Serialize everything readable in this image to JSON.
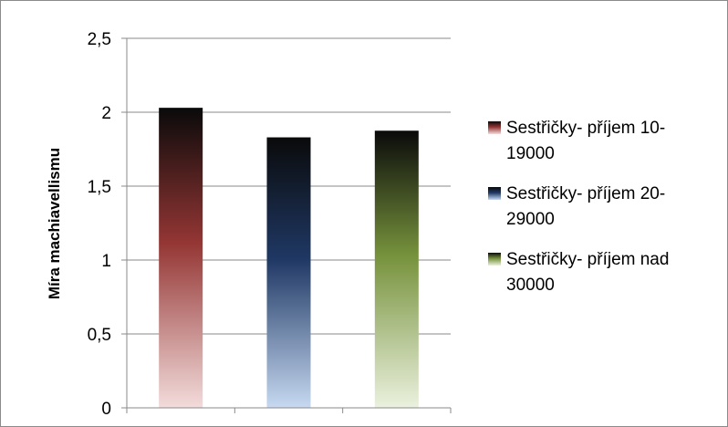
{
  "chart_data": {
    "type": "bar",
    "title": "",
    "xlabel": "",
    "ylabel": "Míra machiavellismu",
    "ylim": [
      0,
      2.5
    ],
    "yticks": [
      "0",
      "0,5",
      "1",
      "1,5",
      "2",
      "2,5"
    ],
    "ytick_values": [
      0,
      0.5,
      1,
      1.5,
      2,
      2.5
    ],
    "grid": true,
    "legend_position": "right",
    "series": [
      {
        "name_lines": [
          "Sestřičky- příjem 10-",
          "19000"
        ],
        "value": 2.03,
        "color_top": "#0a0a0a",
        "color_mid": "#943634",
        "color_bottom": "#f2dcdb"
      },
      {
        "name_lines": [
          "Sestřičky- příjem 20-",
          "29000"
        ],
        "value": 1.83,
        "color_top": "#0a0a0a",
        "color_mid": "#1f3864",
        "color_bottom": "#c6d9f1"
      },
      {
        "name_lines": [
          "Sestřičky- příjem nad",
          "30000"
        ],
        "value": 1.875,
        "color_top": "#0a0a0a",
        "color_mid": "#76923c",
        "color_bottom": "#ebf1de"
      }
    ]
  }
}
